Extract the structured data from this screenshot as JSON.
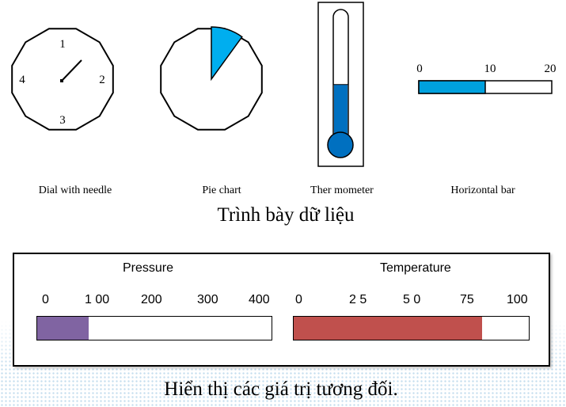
{
  "widgets": {
    "dial": {
      "caption": "Dial with needle",
      "labels": [
        "1",
        "2",
        "3",
        "4"
      ]
    },
    "pie": {
      "caption": "Pie chart",
      "fraction": 0.1,
      "color": "#00AEEF"
    },
    "thermometer": {
      "caption": "Ther mometer",
      "fraction": 0.45,
      "color": "#0070C0"
    },
    "hbar": {
      "caption": "Horizontal bar",
      "ticks": [
        "0",
        "10",
        "20"
      ],
      "value": 10,
      "max": 20,
      "color": "#00A1DE"
    }
  },
  "section_title": "Trình bày dữ liệu",
  "gauges": {
    "pressure": {
      "title": "Pressure",
      "ticks": [
        "0",
        "1 00",
        "200",
        "300",
        "400"
      ],
      "value": 88,
      "max": 400,
      "color": "#8064A2"
    },
    "temperature": {
      "title": "Temperature",
      "ticks": [
        "0",
        "2 5",
        "5 0",
        "75",
        "100"
      ],
      "value": 80,
      "max": 100,
      "color": "#C0504D"
    }
  },
  "footer_caption": "Hiển thị các giá trị tương đối."
}
